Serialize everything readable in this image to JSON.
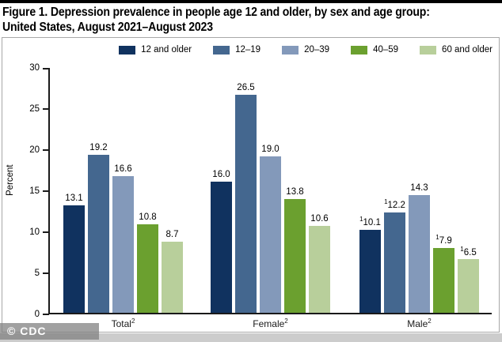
{
  "page": {
    "title_line1": "Figure 1. Depression prevalence in people age 12 and older, by sex and age group:",
    "title_line2": "United States, August 2021–August 2023",
    "watermark": "© CDC"
  },
  "chart_data": {
    "type": "bar",
    "title": "Figure 1. Depression prevalence in people age 12 and older, by sex and age group: United States, August 2021–August 2023",
    "xlabel": "",
    "ylabel": "Percent",
    "ylim": [
      0,
      30
    ],
    "yticks": [
      0,
      5,
      10,
      15,
      20,
      25,
      30
    ],
    "grid": false,
    "legend_position": "top",
    "categories": [
      "Total",
      "Female",
      "Male"
    ],
    "category_superscript": "2",
    "series": [
      {
        "name": "12 and older",
        "color": "#10325f",
        "values": [
          13.1,
          16.0,
          10.1
        ],
        "value_superscripts": [
          "",
          "",
          "1"
        ]
      },
      {
        "name": "12–19",
        "color": "#44678f",
        "values": [
          19.2,
          26.5,
          12.2
        ],
        "value_superscripts": [
          "",
          "",
          "1"
        ]
      },
      {
        "name": "20–39",
        "color": "#8399ba",
        "values": [
          16.6,
          19.0,
          14.3
        ],
        "value_superscripts": [
          "",
          "",
          ""
        ]
      },
      {
        "name": "40–59",
        "color": "#6ba02f",
        "values": [
          10.8,
          13.8,
          7.9
        ],
        "value_superscripts": [
          "",
          "",
          "1"
        ]
      },
      {
        "name": "60 and older",
        "color": "#b8cf9b",
        "values": [
          8.7,
          10.6,
          6.5
        ],
        "value_superscripts": [
          "",
          "",
          "1"
        ]
      }
    ]
  }
}
